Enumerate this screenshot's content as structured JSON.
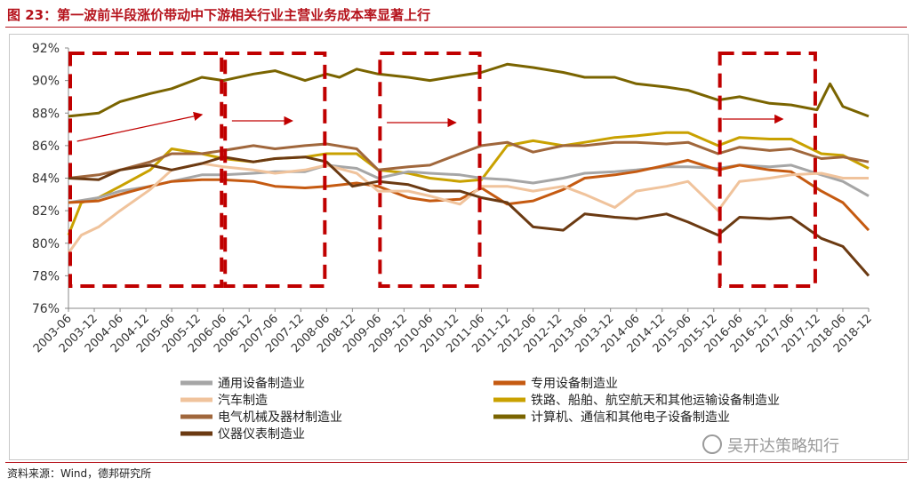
{
  "header": {
    "title": "图 23：第一波前半段涨价带动中下游相关行业主营业务成本率显著上行"
  },
  "footer": {
    "source": "资料来源：Wind，德邦研究所",
    "watermark": "吴开达策略知行"
  },
  "colors": {
    "通用设备制造业": "#a6a6a6",
    "专用设备制造业": "#c55a11",
    "汽车制造": "#f0c39c",
    "铁路、船舶、航空航天和其他运输设备制造业": "#c9a100",
    "电气机械及器材制造业": "#a0673c",
    "计算机、通信和其他电子设备制造业": "#7a6400",
    "仪器仪表制造业": "#6b3a12",
    "box": "#c00000",
    "arrow": "#c00000"
  },
  "chart_data": {
    "type": "line",
    "ylim": [
      76,
      92
    ],
    "yticks": [
      "76%",
      "78%",
      "80%",
      "82%",
      "84%",
      "86%",
      "88%",
      "90%",
      "92%"
    ],
    "x_start": "2003-06",
    "x_end": "2018-12",
    "xticks": [
      "2003-06",
      "2003-12",
      "2004-06",
      "2004-12",
      "2005-06",
      "2005-12",
      "2006-06",
      "2006-12",
      "2007-06",
      "2007-12",
      "2008-06",
      "2008-12",
      "2009-06",
      "2009-12",
      "2010-06",
      "2010-12",
      "2011-06",
      "2011-12",
      "2012-06",
      "2012-12",
      "2013-06",
      "2013-12",
      "2014-06",
      "2014-12",
      "2015-06",
      "2015-12",
      "2016-06",
      "2016-12",
      "2017-06",
      "2017-12",
      "2018-06",
      "2018-12"
    ],
    "highlight_periods": [
      [
        "2003-06",
        "2006-06"
      ],
      [
        "2006-06",
        "2008-06"
      ],
      [
        "2009-06",
        "2011-06"
      ],
      [
        "2016-01",
        "2017-12"
      ]
    ],
    "series": [
      {
        "name": "计算机、通信和其他电子设备制造业",
        "values": [
          [
            "2003-06",
            87.8
          ],
          [
            "2004-01",
            88.0
          ],
          [
            "2004-06",
            88.7
          ],
          [
            "2005-01",
            89.2
          ],
          [
            "2005-06",
            89.5
          ],
          [
            "2006-01",
            90.2
          ],
          [
            "2006-06",
            90.0
          ],
          [
            "2007-01",
            90.4
          ],
          [
            "2007-06",
            90.6
          ],
          [
            "2008-01",
            90.0
          ],
          [
            "2008-06",
            90.4
          ],
          [
            "2008-09",
            90.2
          ],
          [
            "2009-01",
            90.7
          ],
          [
            "2009-06",
            90.4
          ],
          [
            "2010-01",
            90.2
          ],
          [
            "2010-06",
            90.0
          ],
          [
            "2011-01",
            90.3
          ],
          [
            "2011-06",
            90.5
          ],
          [
            "2011-12",
            91.0
          ],
          [
            "2012-06",
            90.8
          ],
          [
            "2013-01",
            90.5
          ],
          [
            "2013-06",
            90.2
          ],
          [
            "2014-01",
            90.2
          ],
          [
            "2014-06",
            89.8
          ],
          [
            "2015-01",
            89.6
          ],
          [
            "2015-06",
            89.4
          ],
          [
            "2016-01",
            88.8
          ],
          [
            "2016-06",
            89.0
          ],
          [
            "2017-01",
            88.6
          ],
          [
            "2017-06",
            88.5
          ],
          [
            "2017-12",
            88.2
          ],
          [
            "2018-03",
            89.8
          ],
          [
            "2018-06",
            88.4
          ],
          [
            "2018-12",
            87.8
          ]
        ]
      },
      {
        "name": "铁路、船舶、航空航天和其他运输设备制造业",
        "values": [
          [
            "2003-06",
            80.5
          ],
          [
            "2003-09",
            82.5
          ],
          [
            "2004-01",
            82.8
          ],
          [
            "2004-06",
            83.5
          ],
          [
            "2005-01",
            84.5
          ],
          [
            "2005-06",
            85.8
          ],
          [
            "2006-01",
            85.5
          ],
          [
            "2006-06",
            85.2
          ],
          [
            "2007-01",
            85.0
          ],
          [
            "2007-06",
            85.2
          ],
          [
            "2008-01",
            85.3
          ],
          [
            "2008-06",
            85.5
          ],
          [
            "2009-01",
            85.5
          ],
          [
            "2009-06",
            84.5
          ],
          [
            "2010-01",
            84.3
          ],
          [
            "2010-06",
            84.0
          ],
          [
            "2011-01",
            83.8
          ],
          [
            "2011-06",
            83.9
          ],
          [
            "2011-12",
            86.0
          ],
          [
            "2012-06",
            86.3
          ],
          [
            "2013-01",
            86.0
          ],
          [
            "2013-06",
            86.2
          ],
          [
            "2014-01",
            86.5
          ],
          [
            "2014-06",
            86.6
          ],
          [
            "2015-01",
            86.8
          ],
          [
            "2015-06",
            86.8
          ],
          [
            "2016-01",
            86.0
          ],
          [
            "2016-06",
            86.5
          ],
          [
            "2017-01",
            86.4
          ],
          [
            "2017-06",
            86.4
          ],
          [
            "2018-01",
            85.5
          ],
          [
            "2018-06",
            85.4
          ],
          [
            "2018-12",
            84.6
          ]
        ]
      },
      {
        "name": "电气机械及器材制造业",
        "values": [
          [
            "2003-06",
            84.0
          ],
          [
            "2004-01",
            84.2
          ],
          [
            "2004-06",
            84.5
          ],
          [
            "2005-01",
            85.0
          ],
          [
            "2005-06",
            85.5
          ],
          [
            "2006-01",
            85.5
          ],
          [
            "2006-06",
            85.7
          ],
          [
            "2007-01",
            86.0
          ],
          [
            "2007-06",
            85.8
          ],
          [
            "2008-01",
            86.0
          ],
          [
            "2008-06",
            86.1
          ],
          [
            "2009-01",
            85.8
          ],
          [
            "2009-06",
            84.5
          ],
          [
            "2010-01",
            84.7
          ],
          [
            "2010-06",
            84.8
          ],
          [
            "2011-01",
            85.5
          ],
          [
            "2011-06",
            86.0
          ],
          [
            "2011-12",
            86.2
          ],
          [
            "2012-06",
            85.6
          ],
          [
            "2013-01",
            86.0
          ],
          [
            "2013-06",
            86.0
          ],
          [
            "2014-01",
            86.2
          ],
          [
            "2014-06",
            86.2
          ],
          [
            "2015-01",
            86.1
          ],
          [
            "2015-06",
            86.2
          ],
          [
            "2016-01",
            85.5
          ],
          [
            "2016-06",
            85.9
          ],
          [
            "2017-01",
            85.7
          ],
          [
            "2017-06",
            85.8
          ],
          [
            "2018-01",
            85.2
          ],
          [
            "2018-06",
            85.3
          ],
          [
            "2018-12",
            85.0
          ]
        ]
      },
      {
        "name": "通用设备制造业",
        "values": [
          [
            "2003-06",
            82.5
          ],
          [
            "2004-01",
            82.8
          ],
          [
            "2004-06",
            83.2
          ],
          [
            "2005-01",
            83.5
          ],
          [
            "2005-06",
            83.8
          ],
          [
            "2006-01",
            84.2
          ],
          [
            "2006-06",
            84.2
          ],
          [
            "2007-01",
            84.3
          ],
          [
            "2007-06",
            84.4
          ],
          [
            "2008-01",
            84.4
          ],
          [
            "2008-06",
            84.8
          ],
          [
            "2009-01",
            84.6
          ],
          [
            "2009-06",
            84.0
          ],
          [
            "2010-01",
            84.4
          ],
          [
            "2010-06",
            84.3
          ],
          [
            "2011-01",
            84.2
          ],
          [
            "2011-06",
            84.0
          ],
          [
            "2011-12",
            83.9
          ],
          [
            "2012-06",
            83.7
          ],
          [
            "2013-01",
            84.0
          ],
          [
            "2013-06",
            84.3
          ],
          [
            "2014-01",
            84.4
          ],
          [
            "2014-06",
            84.5
          ],
          [
            "2015-01",
            84.7
          ],
          [
            "2015-06",
            84.7
          ],
          [
            "2016-01",
            84.6
          ],
          [
            "2016-06",
            84.8
          ],
          [
            "2017-01",
            84.7
          ],
          [
            "2017-06",
            84.8
          ],
          [
            "2018-01",
            84.2
          ],
          [
            "2018-06",
            83.8
          ],
          [
            "2018-12",
            82.9
          ]
        ]
      },
      {
        "name": "专用设备制造业",
        "values": [
          [
            "2003-06",
            82.5
          ],
          [
            "2004-01",
            82.6
          ],
          [
            "2004-06",
            83.0
          ],
          [
            "2005-01",
            83.5
          ],
          [
            "2005-06",
            83.8
          ],
          [
            "2006-01",
            83.9
          ],
          [
            "2006-06",
            83.9
          ],
          [
            "2007-01",
            83.8
          ],
          [
            "2007-06",
            83.5
          ],
          [
            "2008-01",
            83.4
          ],
          [
            "2008-06",
            83.5
          ],
          [
            "2009-01",
            83.7
          ],
          [
            "2009-06",
            83.5
          ],
          [
            "2010-01",
            82.8
          ],
          [
            "2010-06",
            82.6
          ],
          [
            "2011-01",
            82.7
          ],
          [
            "2011-06",
            83.4
          ],
          [
            "2011-12",
            82.4
          ],
          [
            "2012-06",
            82.6
          ],
          [
            "2013-01",
            83.3
          ],
          [
            "2013-06",
            84.0
          ],
          [
            "2014-01",
            84.2
          ],
          [
            "2014-06",
            84.4
          ],
          [
            "2015-01",
            84.8
          ],
          [
            "2015-06",
            85.1
          ],
          [
            "2016-01",
            84.5
          ],
          [
            "2016-06",
            84.8
          ],
          [
            "2017-01",
            84.5
          ],
          [
            "2017-06",
            84.4
          ],
          [
            "2018-01",
            83.2
          ],
          [
            "2018-06",
            82.5
          ],
          [
            "2018-12",
            80.8
          ]
        ]
      },
      {
        "name": "汽车制造",
        "values": [
          [
            "2003-06",
            79.4
          ],
          [
            "2003-09",
            80.5
          ],
          [
            "2004-01",
            81.0
          ],
          [
            "2004-06",
            82.0
          ],
          [
            "2005-01",
            83.3
          ],
          [
            "2005-06",
            84.5
          ],
          [
            "2006-01",
            84.9
          ],
          [
            "2006-06",
            84.7
          ],
          [
            "2007-01",
            84.5
          ],
          [
            "2007-06",
            84.3
          ],
          [
            "2008-01",
            84.5
          ],
          [
            "2008-06",
            84.8
          ],
          [
            "2009-01",
            84.3
          ],
          [
            "2009-06",
            83.2
          ],
          [
            "2010-01",
            83.2
          ],
          [
            "2010-06",
            82.9
          ],
          [
            "2011-01",
            82.4
          ],
          [
            "2011-06",
            83.5
          ],
          [
            "2011-12",
            83.5
          ],
          [
            "2012-06",
            83.2
          ],
          [
            "2013-01",
            83.5
          ],
          [
            "2013-06",
            83.0
          ],
          [
            "2014-01",
            82.2
          ],
          [
            "2014-06",
            83.2
          ],
          [
            "2015-01",
            83.5
          ],
          [
            "2015-06",
            83.8
          ],
          [
            "2016-01",
            82.0
          ],
          [
            "2016-06",
            83.8
          ],
          [
            "2017-01",
            84.0
          ],
          [
            "2017-06",
            84.2
          ],
          [
            "2018-01",
            84.3
          ],
          [
            "2018-06",
            84.0
          ],
          [
            "2018-12",
            84.0
          ]
        ]
      },
      {
        "name": "仪器仪表制造业",
        "values": [
          [
            "2003-06",
            84.0
          ],
          [
            "2004-01",
            83.9
          ],
          [
            "2004-06",
            84.5
          ],
          [
            "2005-01",
            84.8
          ],
          [
            "2005-06",
            84.5
          ],
          [
            "2006-01",
            84.9
          ],
          [
            "2006-06",
            85.3
          ],
          [
            "2007-01",
            85.0
          ],
          [
            "2007-06",
            85.2
          ],
          [
            "2008-01",
            85.3
          ],
          [
            "2008-06",
            85.0
          ],
          [
            "2008-12",
            83.5
          ],
          [
            "2009-06",
            83.8
          ],
          [
            "2010-01",
            83.6
          ],
          [
            "2010-06",
            83.2
          ],
          [
            "2011-01",
            83.2
          ],
          [
            "2011-06",
            82.8
          ],
          [
            "2011-12",
            82.5
          ],
          [
            "2012-06",
            81.0
          ],
          [
            "2013-01",
            80.8
          ],
          [
            "2013-06",
            81.8
          ],
          [
            "2014-01",
            81.6
          ],
          [
            "2014-06",
            81.5
          ],
          [
            "2015-01",
            81.8
          ],
          [
            "2015-06",
            81.3
          ],
          [
            "2016-01",
            80.5
          ],
          [
            "2016-06",
            81.6
          ],
          [
            "2017-01",
            81.5
          ],
          [
            "2017-06",
            81.6
          ],
          [
            "2018-01",
            80.3
          ],
          [
            "2018-06",
            79.8
          ],
          [
            "2018-12",
            78.0
          ]
        ]
      }
    ]
  }
}
